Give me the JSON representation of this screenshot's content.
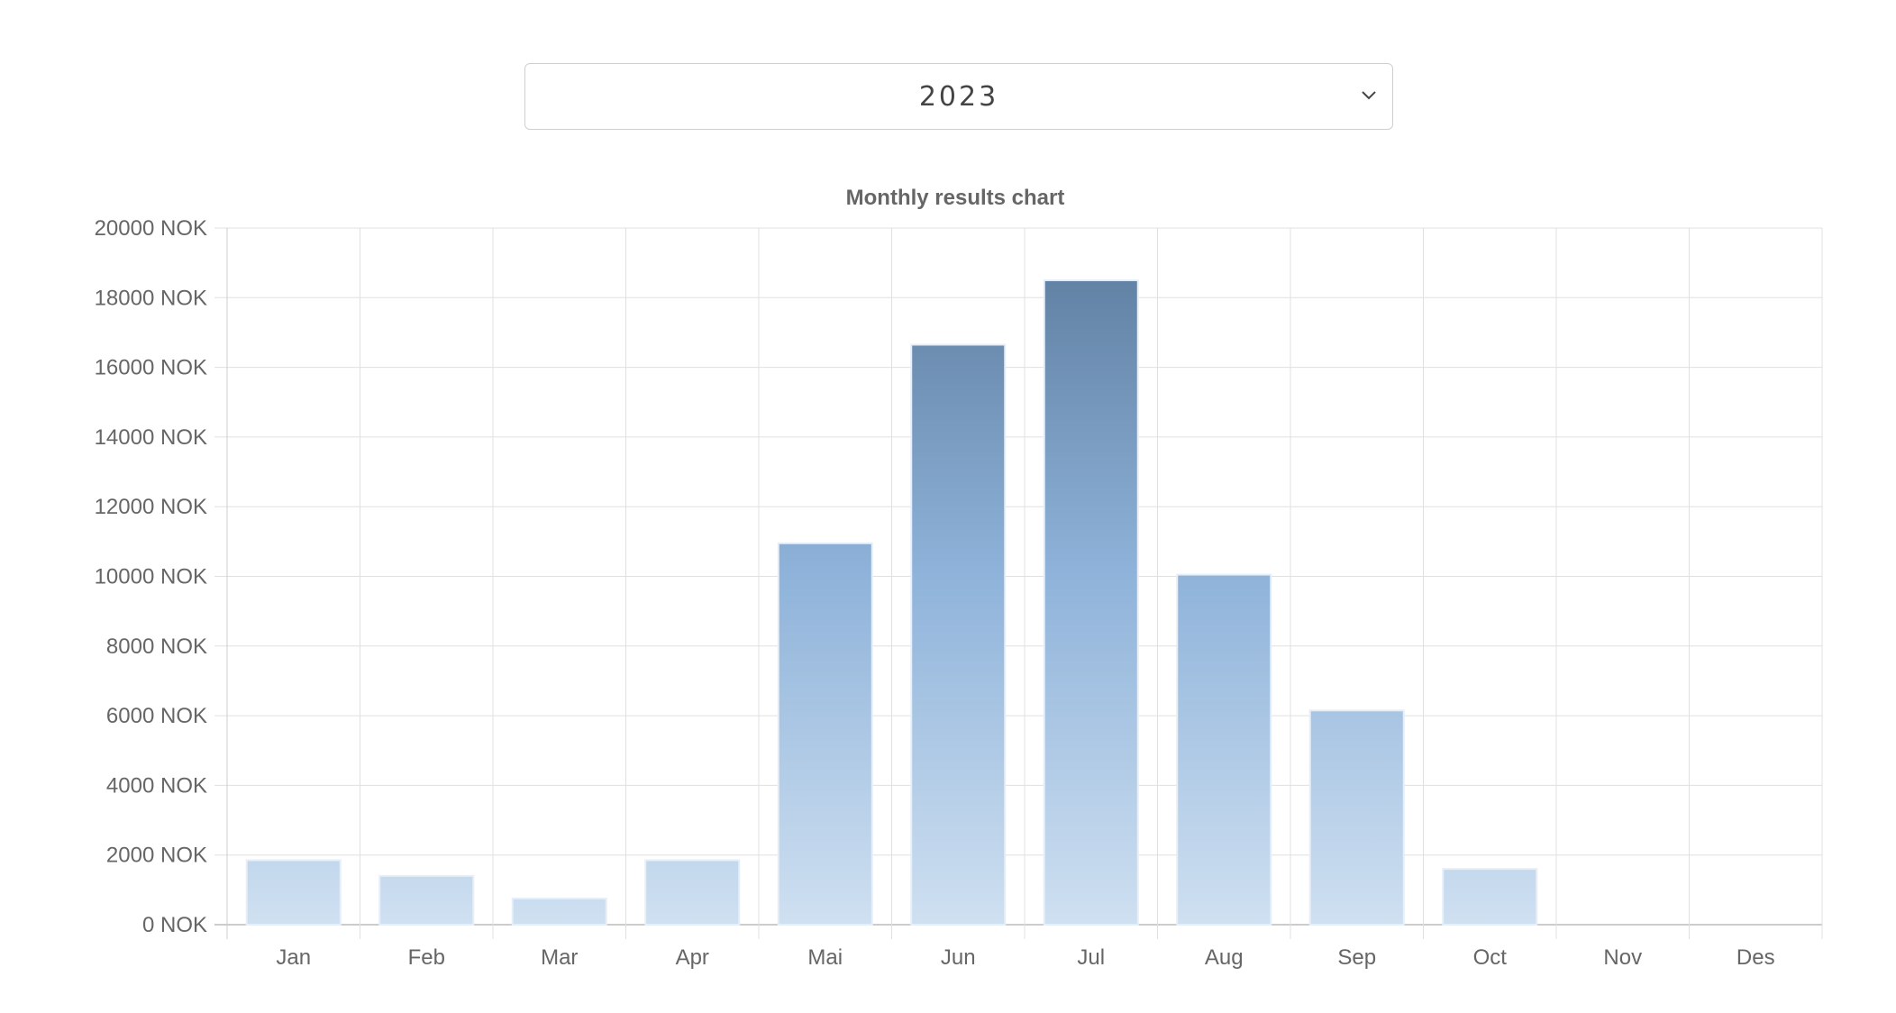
{
  "year_select": {
    "selected": "2023",
    "icon": "chevron-down-icon"
  },
  "chart_data": {
    "type": "bar",
    "title": "Monthly results chart",
    "categories": [
      "Jan",
      "Feb",
      "Mar",
      "Apr",
      "Mai",
      "Jun",
      "Jul",
      "Aug",
      "Sep",
      "Oct",
      "Nov",
      "Des"
    ],
    "values": [
      1850,
      1400,
      750,
      1850,
      10950,
      16650,
      18500,
      10050,
      6150,
      1600,
      0,
      0
    ],
    "ylim": [
      0,
      20000
    ],
    "yticks": [
      0,
      2000,
      4000,
      6000,
      8000,
      10000,
      12000,
      14000,
      16000,
      18000,
      20000
    ],
    "ytick_suffix": " NOK",
    "xlabel": "",
    "ylabel": "",
    "grid": true,
    "colors": {
      "bar_low": "#cfe0f1",
      "bar_mid": "#8fb3da",
      "bar_high": "#5a7a9b",
      "bar_border": "#e6eef7",
      "grid": "#e0e0e0",
      "axis": "#cccccc"
    }
  }
}
